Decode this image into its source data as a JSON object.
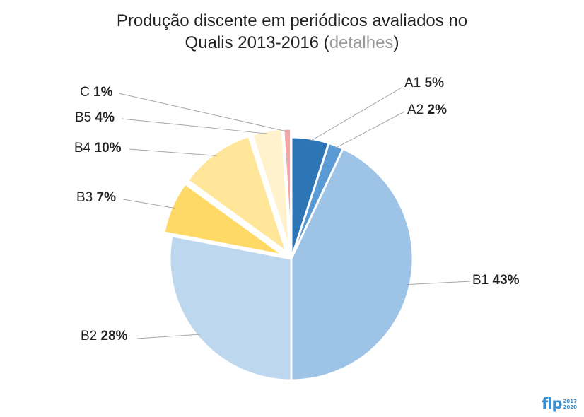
{
  "chart_data": {
    "type": "pie",
    "title_line1": "Produção discente em periódicos avaliados no",
    "title_line2": "Qualis 2013-2016 (",
    "title_link": "detalhes",
    "title_close": ")",
    "series": [
      {
        "label": "A1",
        "pct_text": "5%",
        "value": 5,
        "color": "#2e75b6",
        "exploded": false
      },
      {
        "label": "A2",
        "pct_text": "2%",
        "value": 2,
        "color": "#5b9bd5",
        "exploded": false
      },
      {
        "label": "B1",
        "pct_text": "43%",
        "value": 43,
        "color": "#9dc3e6",
        "exploded": false
      },
      {
        "label": "B2",
        "pct_text": "28%",
        "value": 28,
        "color": "#bdd7ee",
        "exploded": false
      },
      {
        "label": "B3",
        "pct_text": "7%",
        "value": 7,
        "color": "#ffd966",
        "exploded": true
      },
      {
        "label": "B4",
        "pct_text": "10%",
        "value": 10,
        "color": "#ffe699",
        "exploded": true
      },
      {
        "label": "B5",
        "pct_text": "4%",
        "value": 4,
        "color": "#fff2cc",
        "exploded": true
      },
      {
        "label": "C",
        "pct_text": "1%",
        "value": 1,
        "color": "#f4a6a6",
        "exploded": true
      }
    ]
  },
  "brand": {
    "logo_text": "flp",
    "year_top": "2017",
    "year_bottom": "2020"
  }
}
